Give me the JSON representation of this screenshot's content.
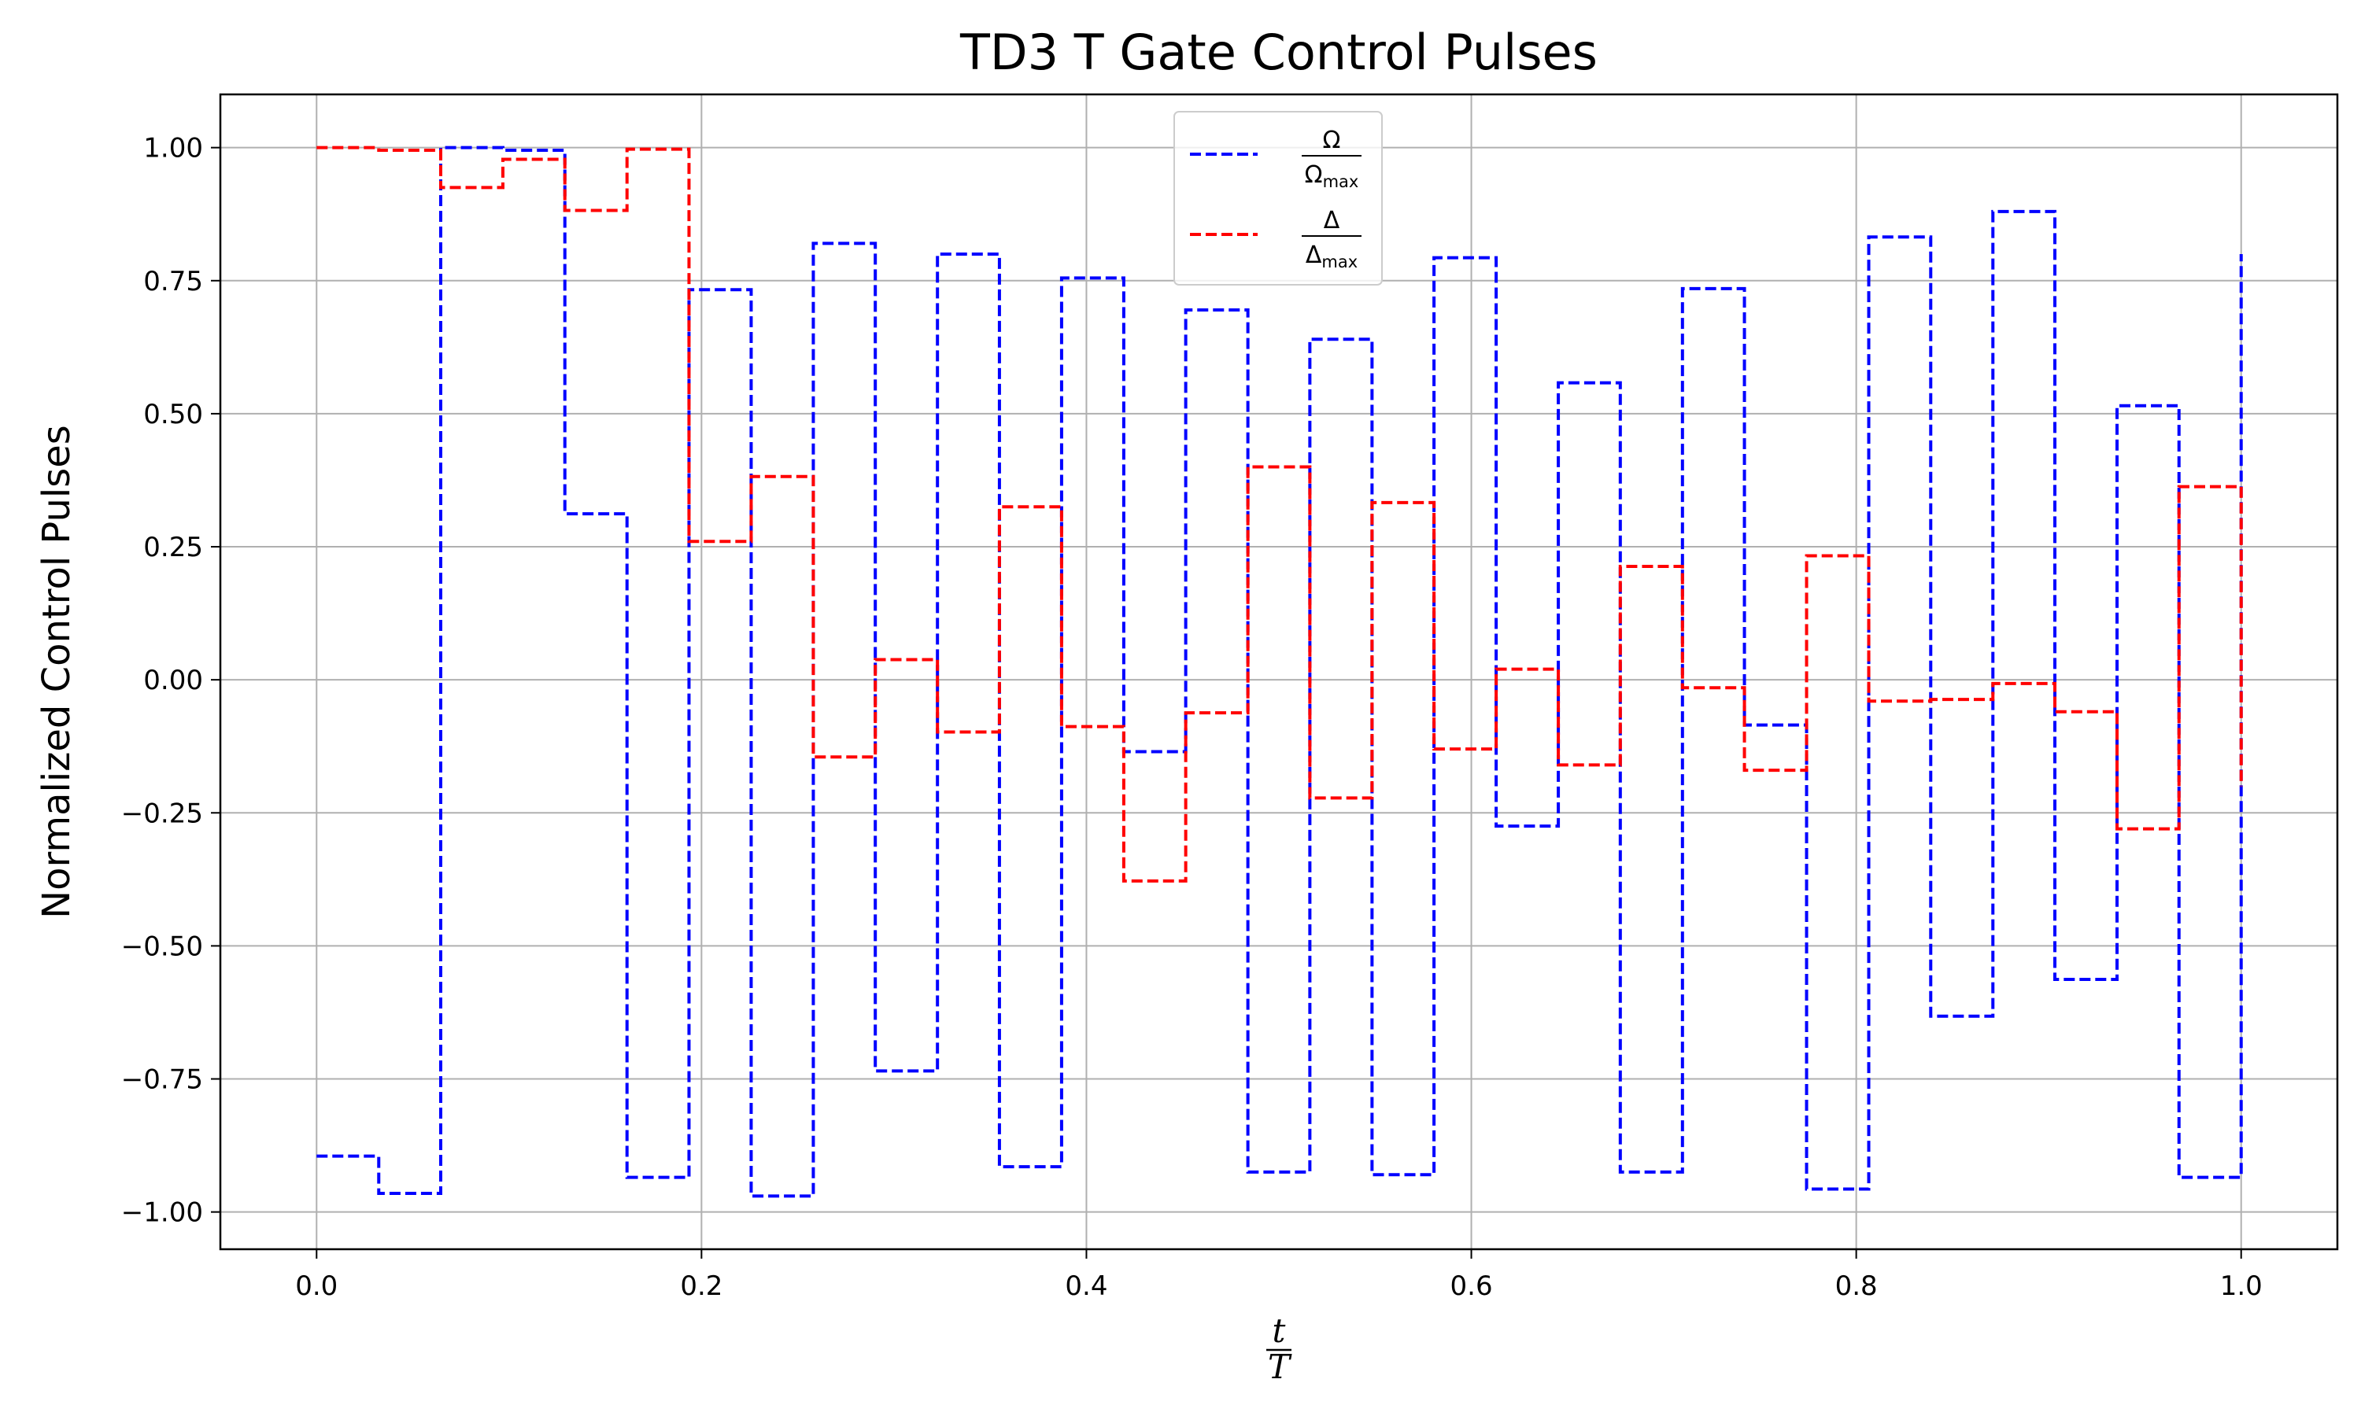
{
  "chart_data": {
    "type": "line",
    "title": "TD3 T Gate Control Pulses",
    "xlabel": {
      "numerator": "t",
      "denominator": "T"
    },
    "ylabel": "Normalized Control Pulses",
    "xlim": [
      -0.05,
      1.05
    ],
    "ylim": [
      -1.07,
      1.1
    ],
    "xticks": [
      0.0,
      0.2,
      0.4,
      0.6,
      0.8,
      1.0
    ],
    "xtick_labels": [
      "0.0",
      "0.2",
      "0.4",
      "0.6",
      "0.8",
      "1.0"
    ],
    "yticks": [
      -1.0,
      -0.75,
      -0.5,
      -0.25,
      0.0,
      0.25,
      0.5,
      0.75,
      1.0
    ],
    "ytick_labels": [
      "−1.00",
      "−0.75",
      "−0.50",
      "−0.25",
      "0.00",
      "0.25",
      "0.50",
      "0.75",
      "1.00"
    ],
    "grid": true,
    "legend_position": "top-center",
    "step_edges": [
      0.0,
      0.0323,
      0.0645,
      0.0968,
      0.129,
      0.1613,
      0.1935,
      0.2258,
      0.2581,
      0.2903,
      0.3226,
      0.3548,
      0.3871,
      0.4194,
      0.4516,
      0.4839,
      0.5161,
      0.5484,
      0.5806,
      0.6129,
      0.6452,
      0.6774,
      0.7097,
      0.7419,
      0.7742,
      0.8065,
      0.8387,
      0.871,
      0.9032,
      0.9355,
      0.9677,
      1.0
    ],
    "series": [
      {
        "name": "Ω",
        "name_sub": "max",
        "color": "#0000ff",
        "values": [
          -0.895,
          -0.965,
          1.0,
          0.995,
          0.312,
          -0.935,
          0.733,
          -0.97,
          0.82,
          -0.735,
          0.8,
          -0.915,
          0.755,
          -0.135,
          0.695,
          -0.925,
          0.64,
          -0.93,
          0.793,
          -0.275,
          0.558,
          -0.925,
          0.735,
          -0.085,
          -0.957,
          0.832,
          -0.632,
          0.88,
          -0.563,
          0.515,
          -0.935
        ],
        "end_value": 0.8
      },
      {
        "name": "Δ",
        "name_sub": "max",
        "color": "#ff0000",
        "values": [
          1.0,
          0.995,
          0.925,
          0.978,
          0.882,
          0.997,
          0.26,
          0.382,
          -0.145,
          0.038,
          -0.098,
          0.325,
          -0.088,
          -0.378,
          -0.062,
          0.4,
          -0.222,
          0.333,
          -0.13,
          0.02,
          -0.16,
          0.213,
          -0.015,
          -0.17,
          0.233,
          -0.04,
          -0.037,
          -0.007,
          -0.06,
          -0.28,
          0.363
        ],
        "end_value": -0.2
      }
    ]
  }
}
